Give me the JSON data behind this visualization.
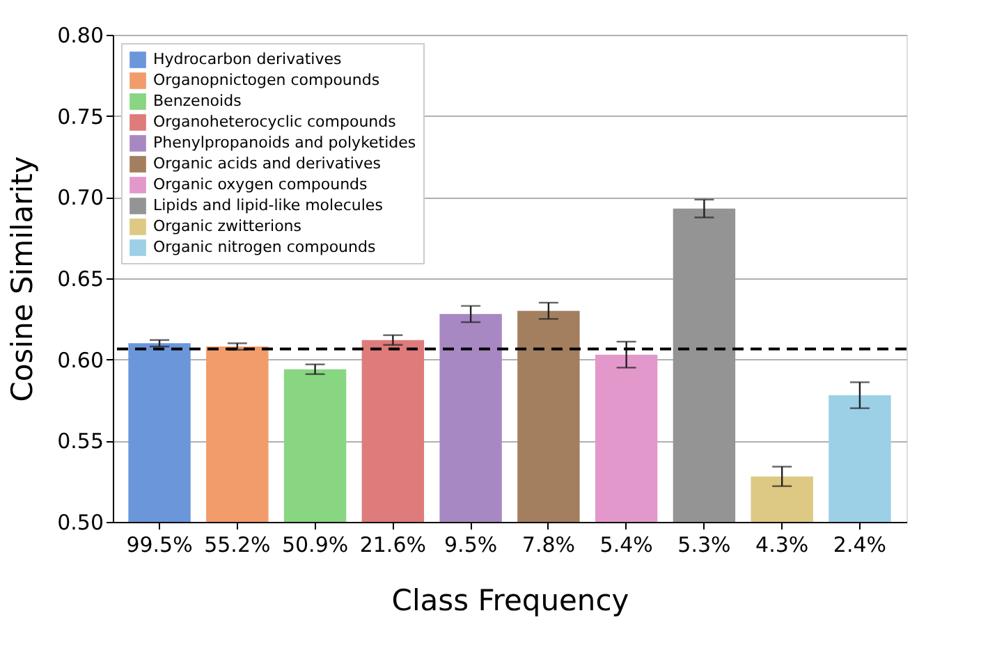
{
  "chart_data": {
    "type": "bar",
    "xlabel": "Class Frequency",
    "ylabel": "Cosine Similarity",
    "categories": [
      "99.5%",
      "55.2%",
      "50.9%",
      "21.6%",
      "9.5%",
      "7.8%",
      "5.4%",
      "5.3%",
      "4.3%",
      "2.4%"
    ],
    "series": [
      {
        "name": "Hydrocarbon derivatives",
        "color": "#6b96da",
        "values": [
          0.61,
          null,
          null,
          null,
          null,
          null,
          null,
          null,
          null,
          null
        ],
        "errors": [
          0.002,
          null,
          null,
          null,
          null,
          null,
          null,
          null,
          null,
          null
        ]
      },
      {
        "name": "Organopnictogen compounds",
        "color": "#f19c6a",
        "values": [
          null,
          0.608,
          null,
          null,
          null,
          null,
          null,
          null,
          null,
          null
        ],
        "errors": [
          null,
          0.002,
          null,
          null,
          null,
          null,
          null,
          null,
          null,
          null
        ]
      },
      {
        "name": "Benzenoids",
        "color": "#88d582",
        "values": [
          null,
          null,
          0.594,
          null,
          null,
          null,
          null,
          null,
          null,
          null
        ],
        "errors": [
          null,
          null,
          0.003,
          null,
          null,
          null,
          null,
          null,
          null,
          null
        ]
      },
      {
        "name": "Organoheterocyclic compounds",
        "color": "#de7b7b",
        "values": [
          null,
          null,
          null,
          0.612,
          null,
          null,
          null,
          null,
          null,
          null
        ],
        "errors": [
          null,
          null,
          null,
          0.003,
          null,
          null,
          null,
          null,
          null,
          null
        ]
      },
      {
        "name": "Phenylpropanoids and polyketides",
        "color": "#a888c2",
        "values": [
          null,
          null,
          null,
          null,
          0.628,
          null,
          null,
          null,
          null,
          null
        ],
        "errors": [
          null,
          null,
          null,
          null,
          0.005,
          null,
          null,
          null,
          null,
          null
        ]
      },
      {
        "name": "Organic acids and derivatives",
        "color": "#a37f60",
        "values": [
          null,
          null,
          null,
          null,
          null,
          0.63,
          null,
          null,
          null,
          null
        ],
        "errors": [
          null,
          null,
          null,
          null,
          null,
          0.005,
          null,
          null,
          null,
          null
        ]
      },
      {
        "name": "Organic oxygen compounds",
        "color": "#e398cc",
        "values": [
          null,
          null,
          null,
          null,
          null,
          null,
          0.603,
          null,
          null,
          null
        ],
        "errors": [
          null,
          null,
          null,
          null,
          null,
          null,
          0.008,
          null,
          null,
          null
        ]
      },
      {
        "name": "Lipids and lipid-like molecules",
        "color": "#949494",
        "values": [
          null,
          null,
          null,
          null,
          null,
          null,
          null,
          0.693,
          null,
          null
        ],
        "errors": [
          null,
          null,
          null,
          null,
          null,
          null,
          null,
          0.0055,
          null,
          null
        ]
      },
      {
        "name": "Organic zwitterions",
        "color": "#ddc984",
        "values": [
          null,
          null,
          null,
          null,
          null,
          null,
          null,
          null,
          0.528,
          null
        ],
        "errors": [
          null,
          null,
          null,
          null,
          null,
          null,
          null,
          null,
          0.006,
          null
        ]
      },
      {
        "name": "Organic nitrogen compounds",
        "color": "#9bd0e7",
        "values": [
          null,
          null,
          null,
          null,
          null,
          null,
          null,
          null,
          null,
          0.578
        ],
        "errors": [
          null,
          null,
          null,
          null,
          null,
          null,
          null,
          null,
          null,
          0.008
        ]
      }
    ],
    "ylim": [
      0.5,
      0.8
    ],
    "yticks": [
      {
        "value": 0.5,
        "label": "0.50"
      },
      {
        "value": 0.55,
        "label": "0.55"
      },
      {
        "value": 0.6,
        "label": "0.60"
      },
      {
        "value": 0.65,
        "label": "0.65"
      },
      {
        "value": 0.7,
        "label": "0.70"
      },
      {
        "value": 0.75,
        "label": "0.75"
      },
      {
        "value": 0.8,
        "label": "0.80"
      }
    ],
    "ref_lines": [
      {
        "axis": "y",
        "value": 0.6065,
        "color": "#000000",
        "line_style": "dashed"
      }
    ],
    "grid": "y",
    "legend": "top left"
  }
}
